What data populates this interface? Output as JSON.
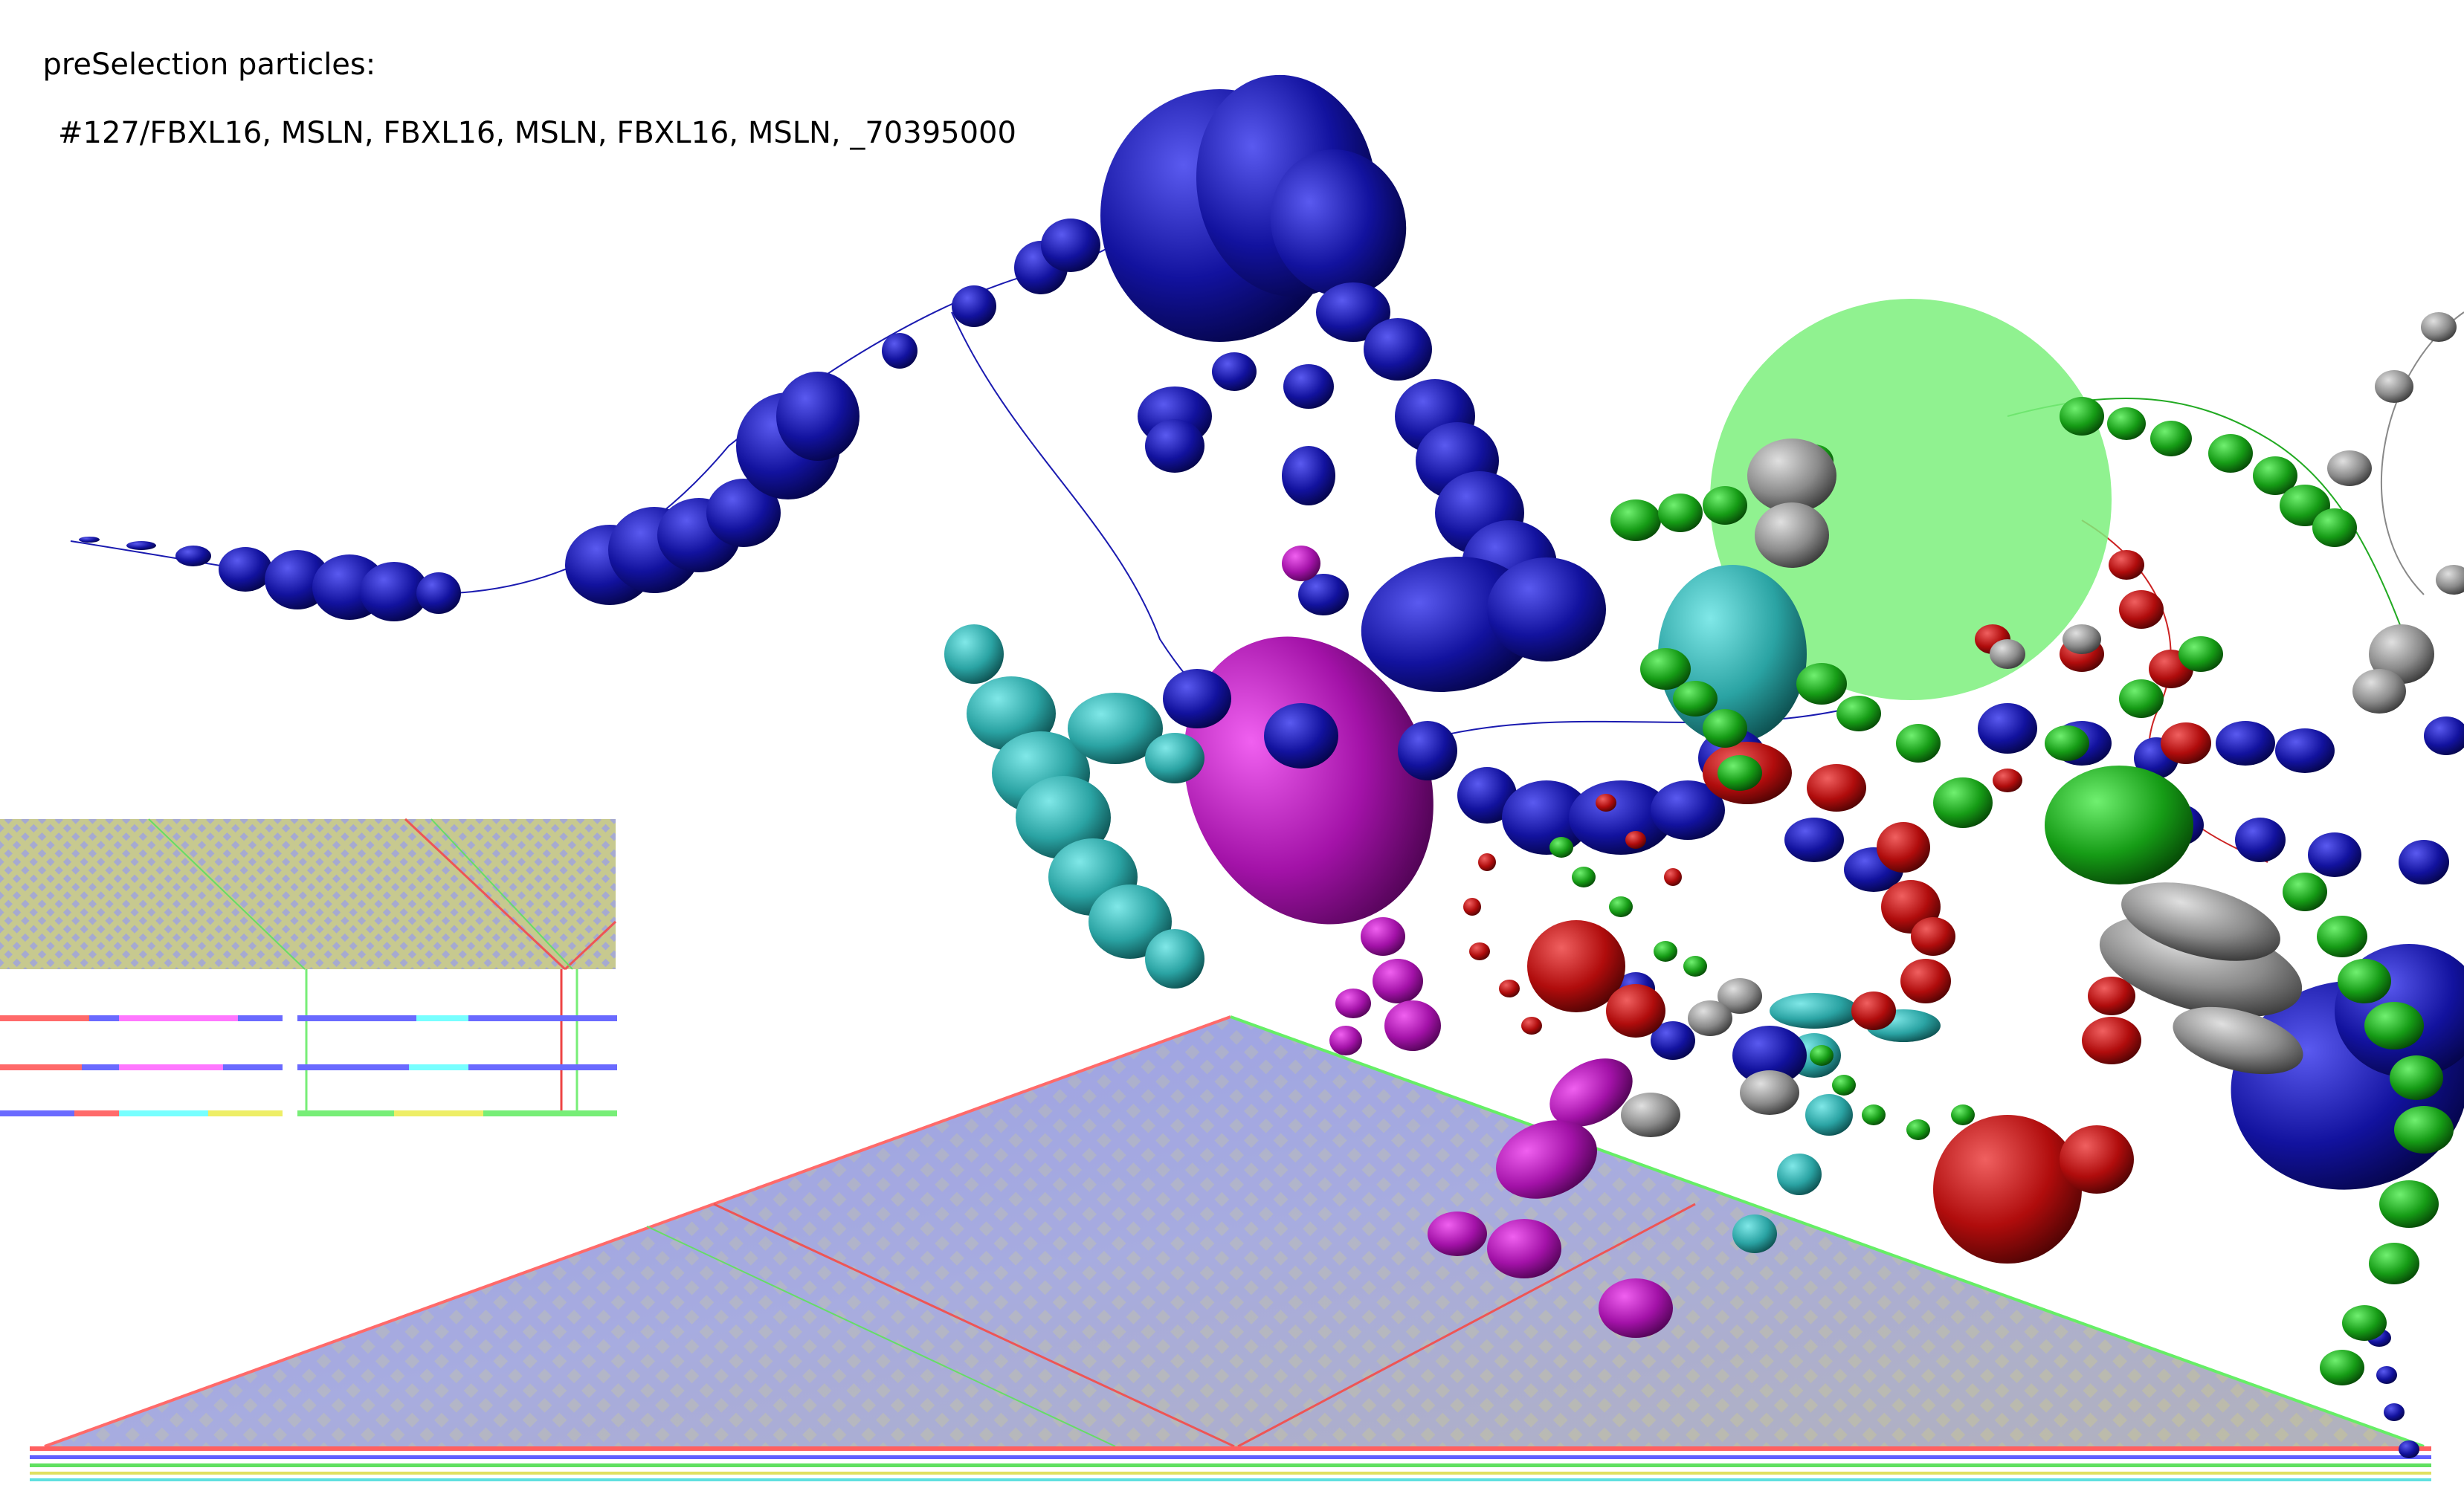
{
  "preselection": {
    "title": "preSelection particles:",
    "list": "#127/FBXL16, MSLN, FBXL16, MSLN, FBXL16, MSLN, _70395000"
  },
  "colors": {
    "background": "#ffffff",
    "chain_blue": "#0a0a9a",
    "chain_magenta": "#a010a8",
    "chain_teal": "#2aa3a3",
    "chain_green": "#169c16",
    "chain_red": "#b00c0c",
    "chain_gray": "#8a8a8a",
    "selection_sphere": "#7cf07c",
    "heatmap_blue": "#8d93e0",
    "heatmap_yellow": "#e9df7a",
    "track_red": "#ff5555",
    "track_green": "#55ee55",
    "track_blue": "#5555ff"
  },
  "icons": {
    "selection_sphere": "sphere-glyph",
    "particle": "disc-glyph"
  }
}
